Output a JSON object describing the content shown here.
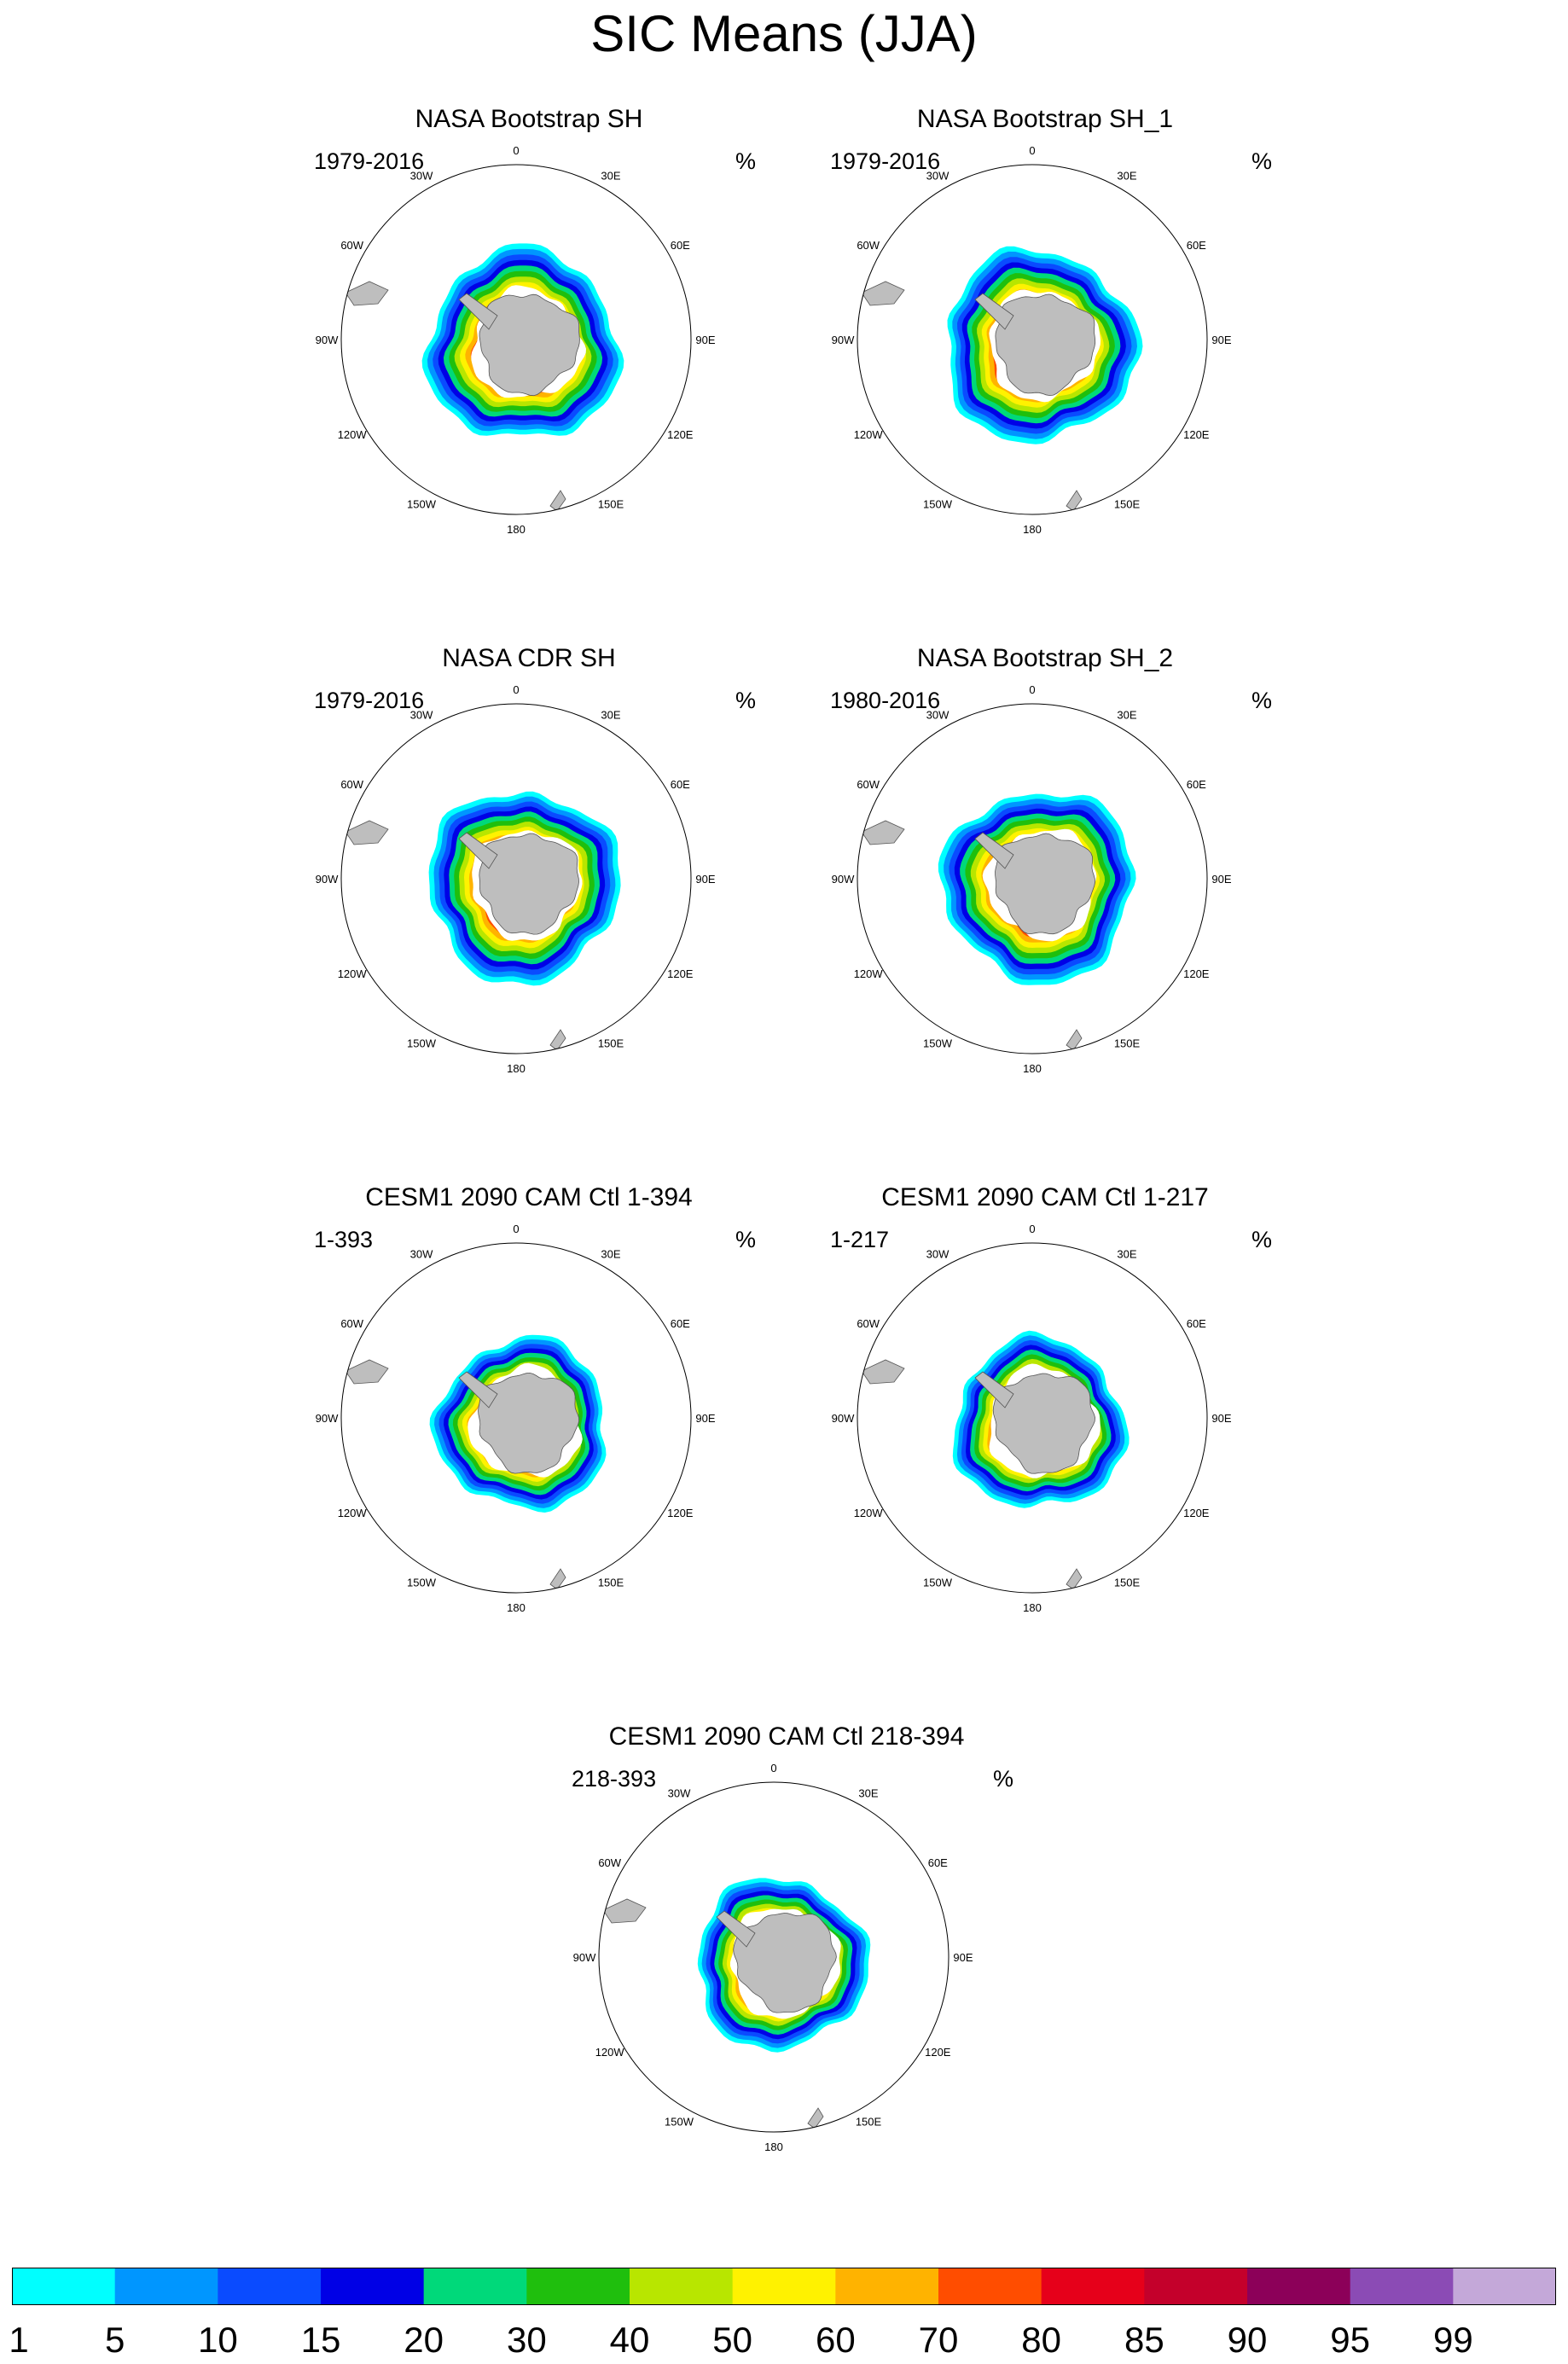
{
  "title": "SIC Means (JJA)",
  "units_label": "%",
  "lon_labels": [
    "0",
    "30E",
    "60E",
    "90E",
    "120E",
    "150E",
    "180",
    "150W",
    "120W",
    "90W",
    "60W",
    "30W"
  ],
  "panels": [
    {
      "title": "NASA Bootstrap SH",
      "period": "1979-2016",
      "kind": "obs"
    },
    {
      "title": "NASA Bootstrap SH_1",
      "period": "1979-2016",
      "kind": "obs"
    },
    {
      "title": "NASA CDR SH",
      "period": "1979-2016",
      "kind": "obs"
    },
    {
      "title": "NASA Bootstrap SH_2",
      "period": "1980-2016",
      "kind": "obs"
    },
    {
      "title": "CESM1 2090 CAM Ctl 1-394",
      "period": "1-393",
      "kind": "model"
    },
    {
      "title": "CESM1 2090 CAM Ctl 1-217",
      "period": "1-217",
      "kind": "model"
    },
    {
      "title": "CESM1 2090 CAM Ctl 218-394",
      "period": "218-393",
      "kind": "model"
    }
  ],
  "colorbar": {
    "labels": [
      "1",
      "5",
      "10",
      "15",
      "20",
      "30",
      "40",
      "50",
      "60",
      "70",
      "80",
      "85",
      "90",
      "95",
      "99"
    ],
    "colors": [
      "#00ffff",
      "#0096ff",
      "#0a4bff",
      "#0000e6",
      "#00d97a",
      "#1fbf0d",
      "#b8e600",
      "#fff200",
      "#ffb300",
      "#ff4d00",
      "#e6001a",
      "#c4002b",
      "#8c0059",
      "#8b4bb5",
      "#c4a8d9"
    ]
  },
  "land_color": "#bebebe"
}
